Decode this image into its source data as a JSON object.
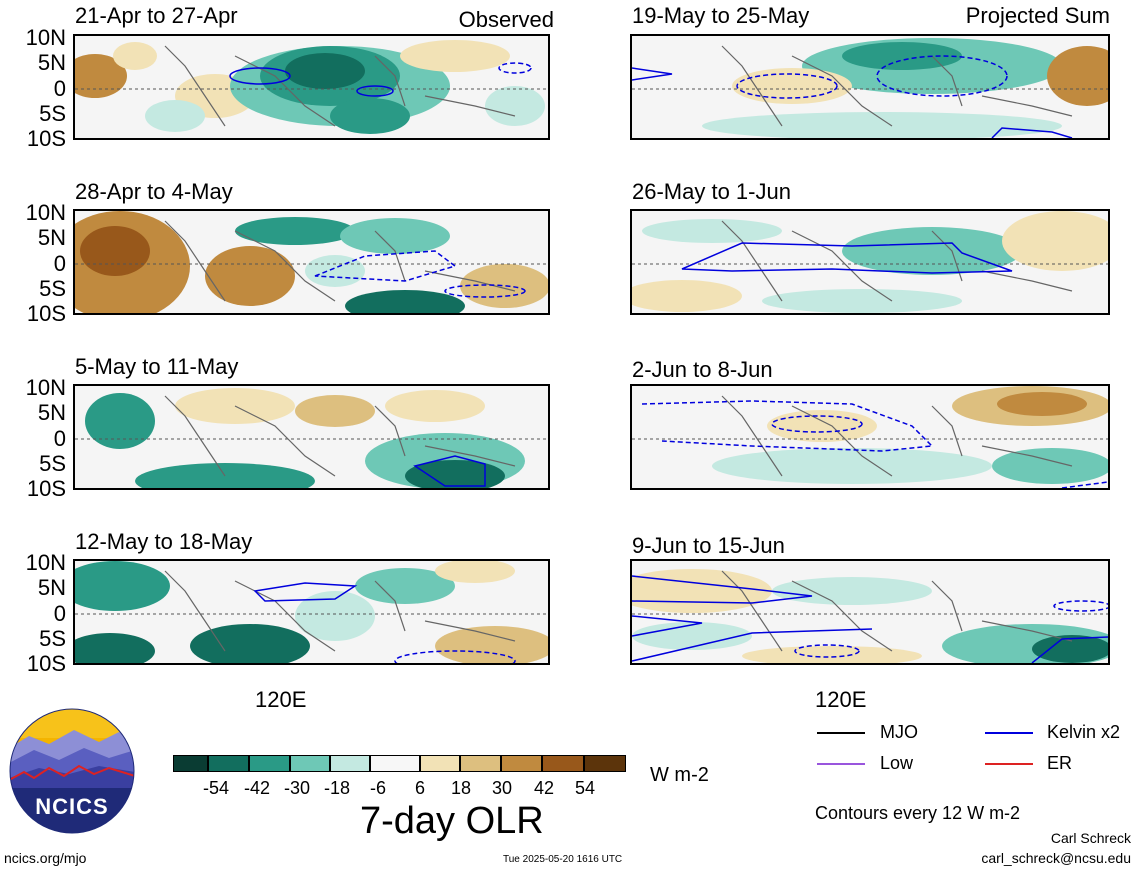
{
  "header": {
    "observed_label": "Observed",
    "projected_label": "Projected Sum"
  },
  "lat_labels": [
    "10N",
    "5N",
    "0",
    "5S",
    "10S"
  ],
  "panels": {
    "p0": {
      "title": "21-Apr to 27-Apr"
    },
    "p1": {
      "title": "28-Apr to 4-May"
    },
    "p2": {
      "title": "5-May to 11-May"
    },
    "p3": {
      "title": "12-May to 18-May"
    },
    "p4": {
      "title": "19-May to 25-May"
    },
    "p5": {
      "title": "26-May to 1-Jun"
    },
    "p6": {
      "title": "2-Jun to 8-Jun"
    },
    "p7": {
      "title": "9-Jun to 15-Jun"
    }
  },
  "x_axis_label": "120E",
  "colorbar": {
    "ticks": [
      "-54",
      "-42",
      "-30",
      "-18",
      "-6",
      "6",
      "18",
      "30",
      "42",
      "54"
    ],
    "colors": [
      "#0a3c33",
      "#126e5e",
      "#2a9a86",
      "#6ec8b6",
      "#c4e9e1",
      "#f7f7f7",
      "#f2e2b6",
      "#ddbf7f",
      "#c08a3f",
      "#98581b",
      "#5c340b"
    ],
    "units": "W m-2",
    "title": "7-day OLR"
  },
  "legend": {
    "mjo": "MJO",
    "kelvin": "Kelvin x2",
    "low": "Low",
    "er": "ER",
    "mjo_color": "#000000",
    "kelvin_color": "#0000dd",
    "low_color": "#9955dd",
    "er_color": "#dd2222"
  },
  "contour_note": "Contours every 12 W m-2",
  "footer": {
    "url": "ncics.org/mjo",
    "timestamp": "Tue 2025-05-20 1616 UTC",
    "author": "Carl Schreck",
    "email": "carl_schreck@ncsu.edu"
  },
  "logo": {
    "text": "NCICS"
  }
}
